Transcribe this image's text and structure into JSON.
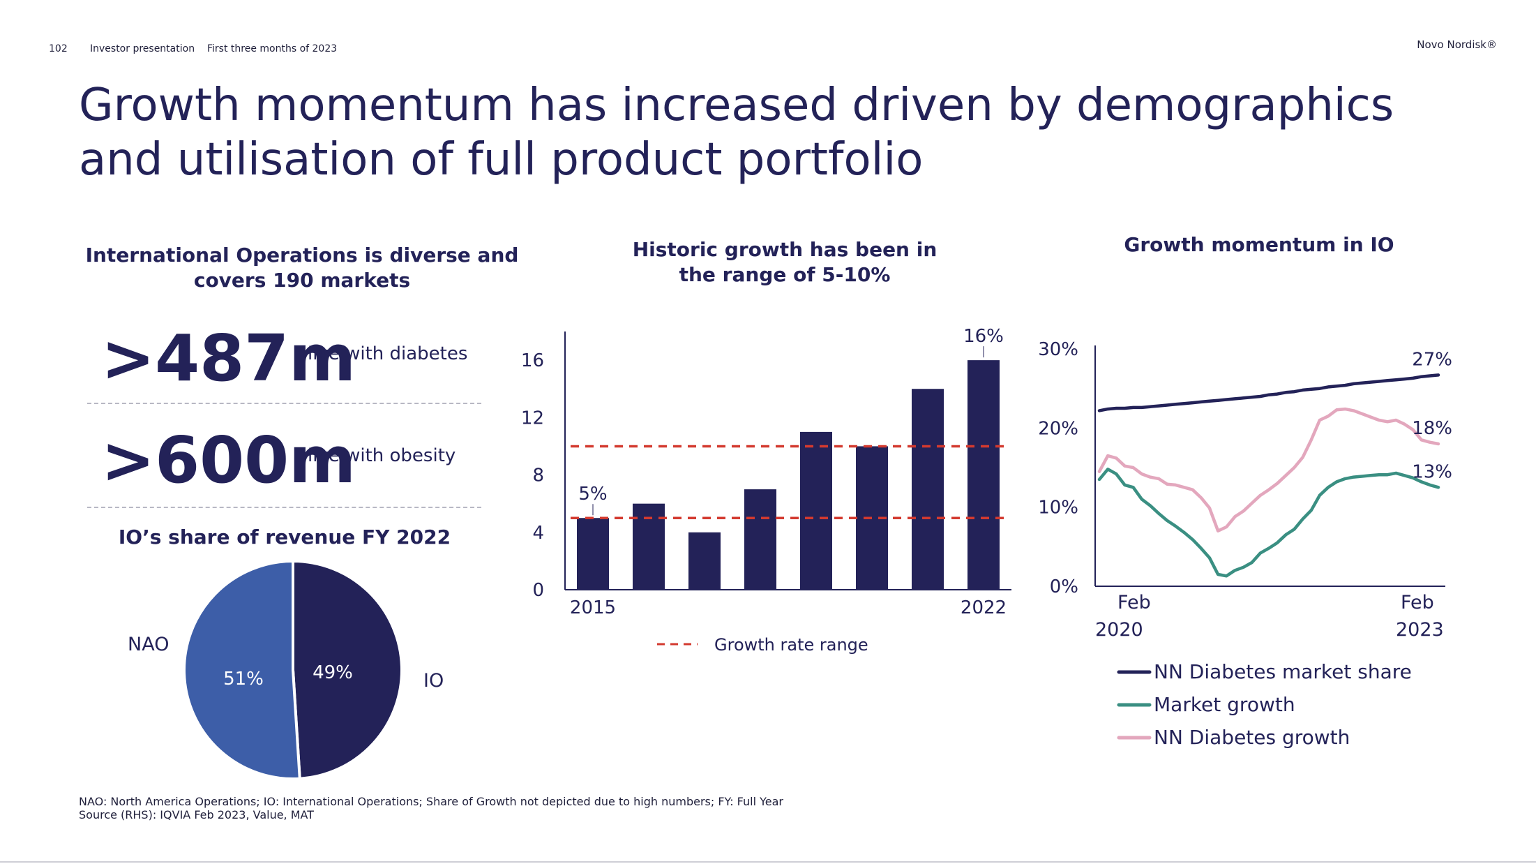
{
  "header": {
    "page_number": "102",
    "doc_title": "Investor presentation",
    "period": "First three months of 2023",
    "brand": "Novo Nordisk®"
  },
  "title": "Growth momentum has increased driven by demographics and utilisation of full product portfolio",
  "left_panel": {
    "heading": "International Operations is diverse and covers 190 markets",
    "stats": [
      {
        "value": ">487m",
        "label": "live with diabetes"
      },
      {
        "value": ">600m",
        "label": "live with obesity"
      }
    ]
  },
  "footnotes": {
    "line1": "NAO: North America Operations; IO: International Operations; Share of Growth not depicted due to high numbers; FY: Full Year",
    "line2": "Source (RHS): IQVIA Feb 2023, Value, MAT"
  },
  "colors": {
    "navy": "#232258",
    "mid_blue": "#3d5ea8",
    "red_dash": "#d33a2f",
    "teal": "#3a8f82",
    "pink": "#e3a7bd"
  },
  "chart_data": [
    {
      "type": "pie",
      "title": "IO’s share of revenue FY 2022",
      "slices": [
        {
          "name": "IO",
          "value": 49,
          "label": "49%",
          "color": "#232258"
        },
        {
          "name": "NAO",
          "value": 51,
          "label": "51%",
          "color": "#3d5ea8"
        }
      ]
    },
    {
      "type": "bar",
      "title": "Historic growth has been in the range of 5-10%",
      "categories": [
        "2015",
        "2016",
        "2017",
        "2018",
        "2019",
        "2020",
        "2021",
        "2022"
      ],
      "x_tick_labels": [
        "2015",
        "",
        "",
        "",
        "",
        "",
        "",
        "2022"
      ],
      "values": [
        5,
        6,
        4,
        7,
        11,
        10,
        14,
        16
      ],
      "data_labels": {
        "2015": "5%",
        "2022": "16%"
      },
      "ylim": [
        0,
        18
      ],
      "yticks": [
        0,
        4,
        8,
        12,
        16
      ],
      "reference_lines": [
        5,
        10
      ],
      "legend": [
        {
          "name": "Growth rate range",
          "style": "dashed",
          "color": "#d33a2f"
        }
      ],
      "legend_position": "bottom"
    },
    {
      "type": "line",
      "title": "Growth momentum in IO",
      "x_start_label": [
        "Feb",
        "2020"
      ],
      "x_end_label": [
        "Feb",
        "2023"
      ],
      "ylim": [
        0,
        30
      ],
      "yticks": [
        "0%",
        "10%",
        "20%",
        "30%"
      ],
      "legend_position": "bottom",
      "series": [
        {
          "name": "NN Diabetes market share",
          "color": "#232258",
          "end_label": "27%",
          "values": [
            22.2,
            22.4,
            22.5,
            22.5,
            22.6,
            22.6,
            22.7,
            22.8,
            22.9,
            23.0,
            23.1,
            23.2,
            23.3,
            23.4,
            23.5,
            23.6,
            23.7,
            23.8,
            23.9,
            24.0,
            24.2,
            24.3,
            24.5,
            24.6,
            24.8,
            24.9,
            25.0,
            25.2,
            25.3,
            25.4,
            25.6,
            25.7,
            25.8,
            25.9,
            26.0,
            26.1,
            26.2,
            26.3,
            26.5,
            26.6,
            26.7
          ]
        },
        {
          "name": "Market growth",
          "color": "#3a8f82",
          "end_label": "13%",
          "values": [
            13.5,
            14.8,
            14.2,
            12.8,
            12.5,
            11.0,
            10.2,
            9.2,
            8.3,
            7.6,
            6.8,
            5.9,
            4.8,
            3.6,
            1.5,
            1.3,
            2.0,
            2.4,
            3.0,
            4.2,
            4.8,
            5.5,
            6.5,
            7.2,
            8.5,
            9.6,
            11.5,
            12.5,
            13.2,
            13.6,
            13.8,
            13.9,
            14.0,
            14.1,
            14.1,
            14.3,
            14.0,
            13.7,
            13.2,
            12.8,
            12.5
          ]
        },
        {
          "name": "NN Diabetes growth",
          "color": "#e3a7bd",
          "end_label": "18%",
          "values": [
            14.5,
            16.5,
            16.2,
            15.2,
            15.0,
            14.2,
            13.8,
            13.6,
            12.9,
            12.8,
            12.5,
            12.2,
            11.2,
            9.9,
            7.0,
            7.5,
            8.8,
            9.5,
            10.5,
            11.5,
            12.2,
            13.0,
            14.0,
            15.0,
            16.3,
            18.5,
            21.0,
            21.5,
            22.3,
            22.4,
            22.2,
            21.8,
            21.4,
            21.0,
            20.8,
            21.0,
            20.5,
            19.8,
            18.5,
            18.2,
            18.0
          ]
        }
      ]
    }
  ]
}
